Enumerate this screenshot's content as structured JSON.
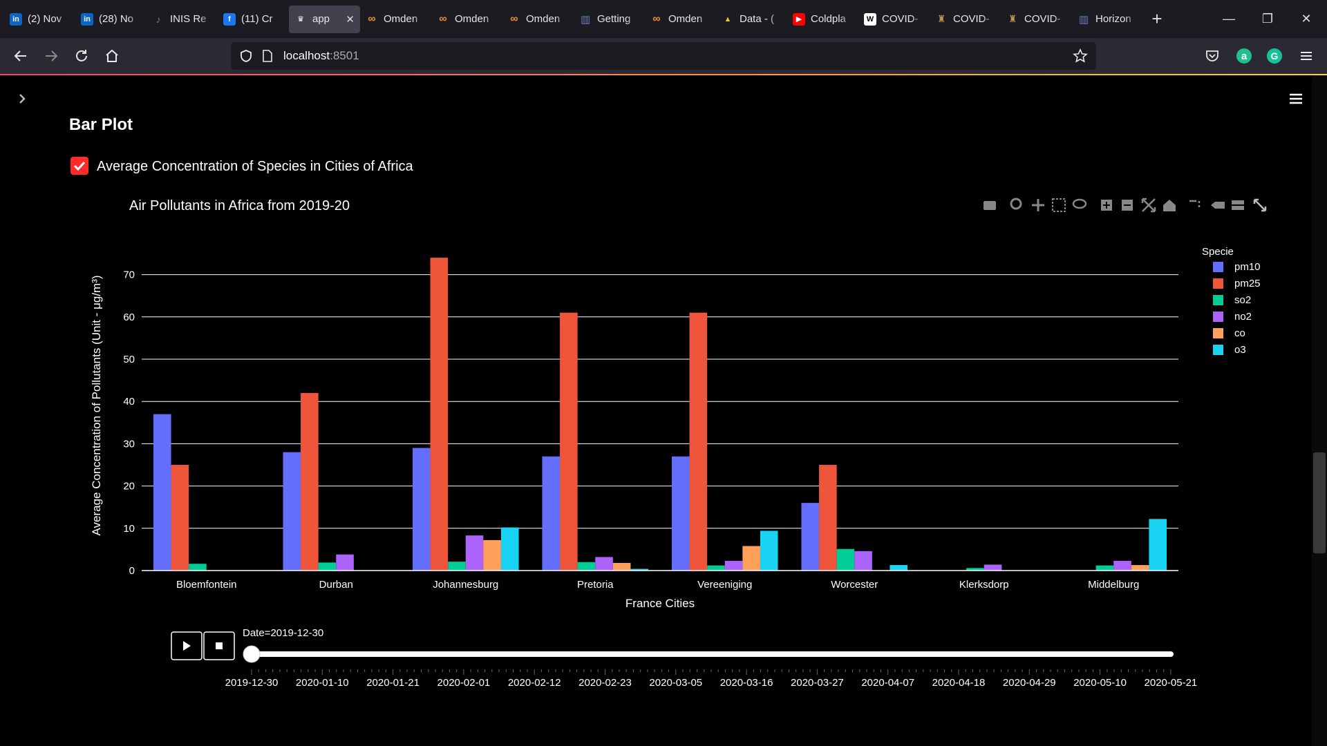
{
  "browser": {
    "tabs": [
      {
        "title": "(2) Nov",
        "icon": "linkedin-icon",
        "color": "#0a66c2",
        "glyph": "in"
      },
      {
        "title": "(28) No",
        "icon": "linkedin-icon",
        "color": "#0a66c2",
        "glyph": "in"
      },
      {
        "title": "INIS Re",
        "icon": "harp-icon",
        "color": "#8a7b4a",
        "glyph": "♪"
      },
      {
        "title": "(11) Cr",
        "icon": "facebook-icon",
        "color": "#1877f2",
        "glyph": "f"
      },
      {
        "title": "app",
        "icon": "streamlit-crown-icon",
        "color": "#42414d",
        "glyph": "♛",
        "active": true
      },
      {
        "title": "Omden",
        "icon": "omdena-icon",
        "color": "#e8912d",
        "glyph": "∞"
      },
      {
        "title": "Omden",
        "icon": "omdena-icon",
        "color": "#e8912d",
        "glyph": "∞"
      },
      {
        "title": "Omden",
        "icon": "omdena-icon",
        "color": "#e8912d",
        "glyph": "∞"
      },
      {
        "title": "Getting",
        "icon": "chart-icon",
        "color": "#6a7fb8",
        "glyph": "▥"
      },
      {
        "title": "Omden",
        "icon": "omdena-icon",
        "color": "#e8912d",
        "glyph": "∞"
      },
      {
        "title": "Data - (",
        "icon": "google-drive-icon",
        "color": "#1fa463",
        "glyph": "▲"
      },
      {
        "title": "Coldpla",
        "icon": "youtube-icon",
        "color": "#ff0000",
        "glyph": "▶"
      },
      {
        "title": "COVID-",
        "icon": "wikipedia-icon",
        "color": "#ffffff",
        "glyph": "W"
      },
      {
        "title": "COVID-",
        "icon": "coat-of-arms-icon",
        "color": "#b89a4a",
        "glyph": "♜"
      },
      {
        "title": "COVID-",
        "icon": "coat-of-arms-icon",
        "color": "#b89a4a",
        "glyph": "♜"
      },
      {
        "title": "Horizon",
        "icon": "chart-icon",
        "color": "#6a7fb8",
        "glyph": "▥"
      }
    ],
    "url_host": "localhost",
    "url_port": ":8501"
  },
  "page": {
    "section_title": "Bar Plot",
    "checkbox_label": "Average Concentration of Species in Cities of Africa",
    "checkbox_checked": true
  },
  "chart_data": {
    "type": "bar",
    "title": "Air Pollutants in Africa from 2019-20",
    "xlabel": "France Cities",
    "ylabel": "Average Concentration of Pollutants (Unit - μg/m³)",
    "ylim": [
      0,
      75
    ],
    "yticks": [
      0,
      10,
      20,
      30,
      40,
      50,
      60,
      70
    ],
    "grid": true,
    "legend_title": "Specie",
    "legend_position": "right",
    "categories": [
      "Bloemfontein",
      "Durban",
      "Johannesburg",
      "Pretoria",
      "Vereeniging",
      "Worcester",
      "Klerksdorp",
      "Middelburg"
    ],
    "series": [
      {
        "name": "pm10",
        "color": "#636efa",
        "values": [
          37,
          28,
          29,
          27,
          27,
          16,
          0,
          0
        ]
      },
      {
        "name": "pm25",
        "color": "#ef553b",
        "values": [
          25,
          42,
          74,
          61,
          61,
          25,
          0,
          0
        ]
      },
      {
        "name": "so2",
        "color": "#00cc96",
        "values": [
          1.6,
          1.9,
          2.1,
          2.0,
          1.2,
          5.1,
          0.6,
          1.2
        ]
      },
      {
        "name": "no2",
        "color": "#ab63fa",
        "values": [
          0,
          3.8,
          8.3,
          3.2,
          2.3,
          4.6,
          1.4,
          2.3
        ]
      },
      {
        "name": "co",
        "color": "#ffa15a",
        "values": [
          0,
          0,
          7.2,
          1.8,
          5.8,
          0,
          0,
          1.3
        ]
      },
      {
        "name": "o3",
        "color": "#19d3f3",
        "values": [
          0,
          0,
          10.2,
          0.4,
          9.4,
          1.3,
          0,
          12.2
        ]
      }
    ],
    "slider": {
      "current_label": "Date=2019-12-30",
      "value": 0,
      "dates": [
        "2019-12-30",
        "2020-01-10",
        "2020-01-21",
        "2020-02-01",
        "2020-02-12",
        "2020-02-23",
        "2020-03-05",
        "2020-03-16",
        "2020-03-27",
        "2020-04-07",
        "2020-04-18",
        "2020-04-29",
        "2020-05-10",
        "2020-05-21"
      ]
    },
    "modebar": [
      "camera-icon",
      "zoom-icon",
      "pan-icon",
      "box-select-icon",
      "lasso-icon",
      "zoom-in-icon",
      "zoom-out-icon",
      "autoscale-icon",
      "reset-axes-icon",
      "toggle-spike-lines-icon",
      "show-closest-icon",
      "compare-data-icon"
    ]
  }
}
